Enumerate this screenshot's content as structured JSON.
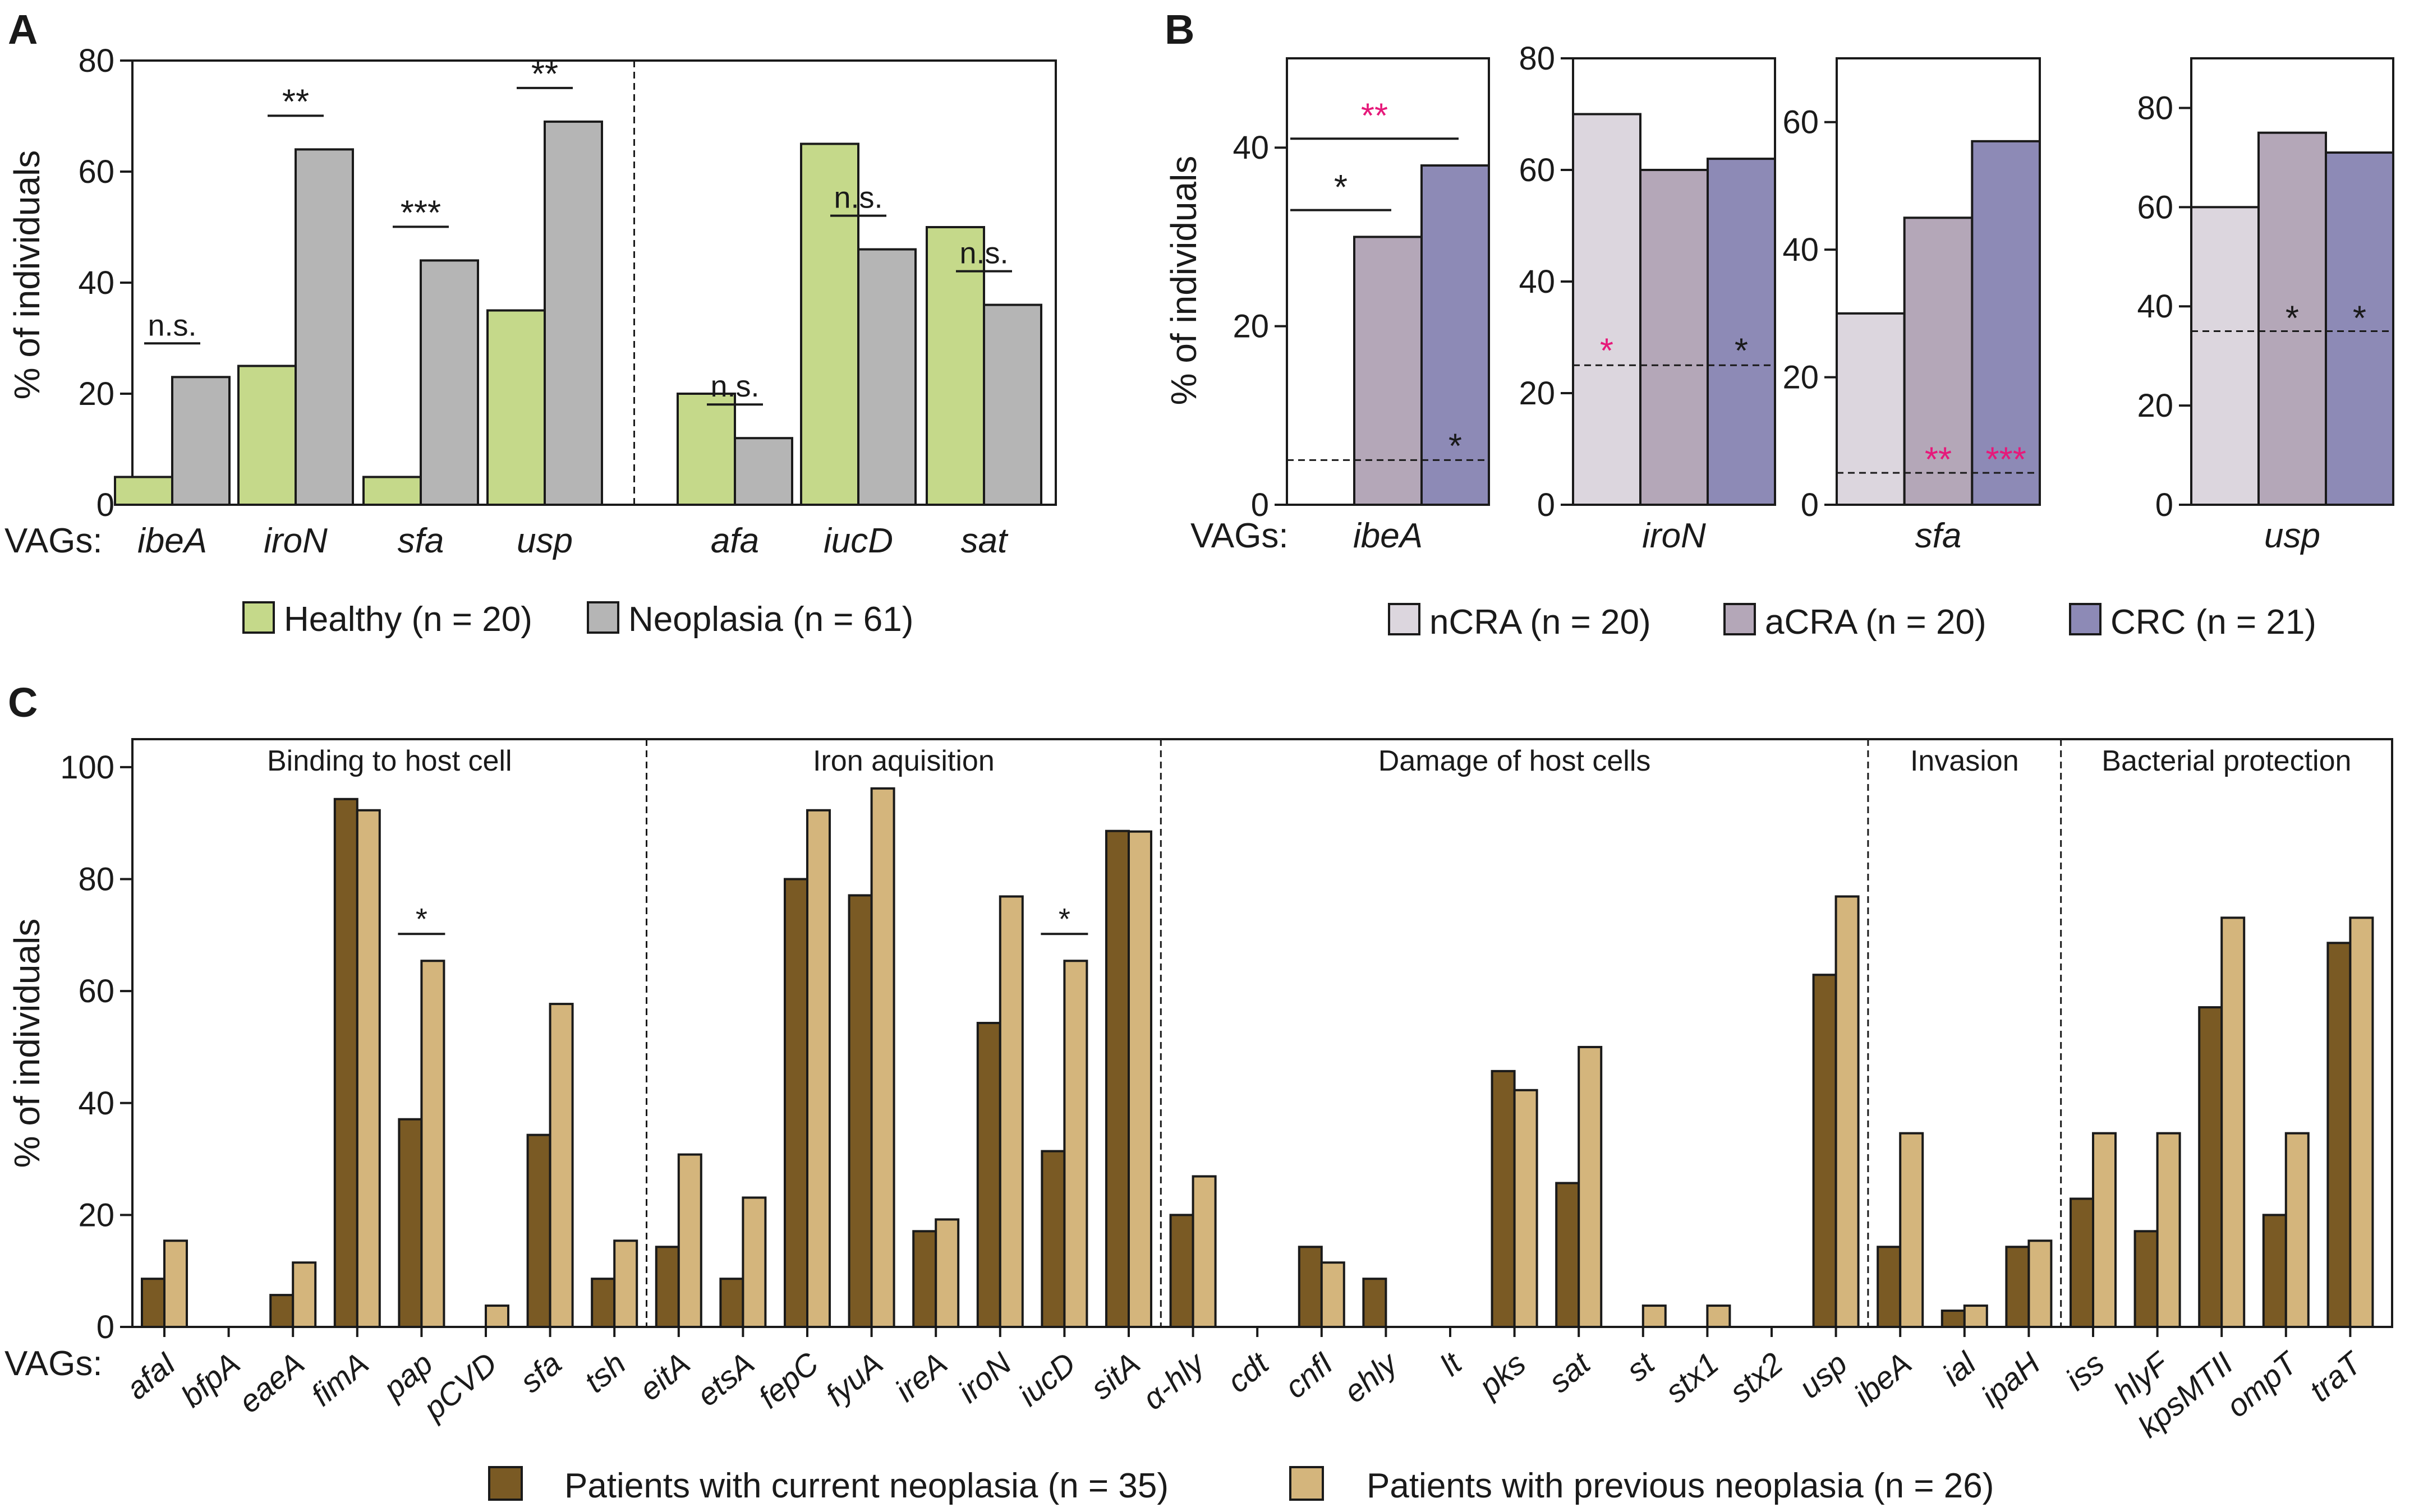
{
  "colors": {
    "healthy": "#c5d98a",
    "neoplasia": "#b5b5b5",
    "nCRA": "#dcd6de",
    "aCRA": "#b4a7b8",
    "CRC": "#8d8ab6",
    "current": "#7a5a24",
    "previous": "#d4b57c",
    "magenta": "#e6197a",
    "black": "#1a1a1a"
  },
  "panel_labels": {
    "a": "A",
    "b": "B",
    "c": "C"
  },
  "common": {
    "vags_prefix": "VAGs:",
    "ylabel": "% of individuals"
  },
  "chart_data": [
    {
      "panel": "A",
      "type": "bar",
      "ylabel": "% of individuals",
      "ylim": [
        0,
        80
      ],
      "yticks": [
        0,
        20,
        40,
        60,
        80
      ],
      "categories": [
        "ibeA",
        "iroN",
        "sfa",
        "usp",
        "afa",
        "iucD",
        "sat"
      ],
      "series": [
        {
          "name": "Healthy (n = 20)",
          "color_key": "healthy",
          "values": [
            5,
            25,
            5,
            35,
            20,
            65,
            50
          ]
        },
        {
          "name": "Neoplasia (n = 61)",
          "color_key": "neoplasia",
          "values": [
            23,
            64,
            44,
            69,
            12,
            46,
            36
          ]
        }
      ],
      "significance": [
        "n.s.",
        "**",
        "***",
        "**",
        "n.s.",
        "n.s.",
        "n.s."
      ],
      "divider_after_index": 3
    },
    {
      "panel": "B",
      "type": "bar",
      "ylabel": "% of individuals",
      "series_names": [
        "nCRA (n = 20)",
        "aCRA (n = 20)",
        "CRC (n = 21)"
      ],
      "series_color_keys": [
        "nCRA",
        "aCRA",
        "CRC"
      ],
      "subplots": [
        {
          "gene": "ibeA",
          "ylim": [
            0,
            50
          ],
          "yticks": [
            0,
            20,
            40
          ],
          "values": [
            0,
            30,
            38
          ],
          "baseline": 5,
          "annotations": [
            {
              "text": "**",
              "color_key": "magenta",
              "x1": 0,
              "x2": 2,
              "y": 41,
              "ty": 43.5
            },
            {
              "text": "*",
              "color_key": "black",
              "x1": 0,
              "x2": 1,
              "y": 33,
              "ty": 35.5
            },
            {
              "text": "*",
              "color_key": "black",
              "x": 2,
              "ty": 6.5
            }
          ]
        },
        {
          "gene": "iroN",
          "ylim": [
            0,
            80
          ],
          "yticks": [
            0,
            20,
            40,
            60,
            80
          ],
          "values": [
            70,
            60,
            62
          ],
          "baseline": 25,
          "annotations": [
            {
              "text": "*",
              "color_key": "magenta",
              "x": 0,
              "ty": 27.5
            },
            {
              "text": "*",
              "color_key": "black",
              "x": 2,
              "ty": 27.5
            }
          ]
        },
        {
          "gene": "sfa",
          "ylim": [
            0,
            70
          ],
          "yticks": [
            0,
            20,
            40,
            60
          ],
          "values": [
            30,
            45,
            57
          ],
          "baseline": 5,
          "annotations": [
            {
              "text": "**",
              "color_key": "magenta",
              "x": 1,
              "ty": 7
            },
            {
              "text": "***",
              "color_key": "magenta",
              "x": 2,
              "ty": 7
            }
          ]
        },
        {
          "gene": "usp",
          "ylim": [
            0,
            90
          ],
          "yticks": [
            0,
            20,
            40,
            60,
            80
          ],
          "values": [
            60,
            75,
            71
          ],
          "baseline": 35,
          "annotations": [
            {
              "text": "*",
              "color_key": "black",
              "x": 1,
              "ty": 37.5
            },
            {
              "text": "*",
              "color_key": "black",
              "x": 2,
              "ty": 37.5
            }
          ]
        }
      ]
    },
    {
      "panel": "C",
      "type": "bar",
      "ylabel": "% of individuals",
      "ylim": [
        0,
        105
      ],
      "yticks": [
        0,
        20,
        40,
        60,
        80,
        100
      ],
      "categories": [
        "afaI",
        "bfpA",
        "eaeA",
        "fimA",
        "pap",
        "pCVD",
        "sfa",
        "tsh",
        "eitA",
        "etsA",
        "fepC",
        "fyuA",
        "ireA",
        "iroN",
        "iucD",
        "sitA",
        "α-hly",
        "cdt",
        "cnfI",
        "ehly",
        "lt",
        "pks",
        "sat",
        "st",
        "stx1",
        "stx2",
        "usp",
        "ibeA",
        "ial",
        "ipaH",
        "iss",
        "hlyF",
        "kpsMTII",
        "ompT",
        "traT"
      ],
      "series": [
        {
          "name": "Patients with current neoplasia (n = 35)",
          "color_key": "current",
          "values": [
            8.6,
            0,
            5.7,
            94.3,
            37.1,
            0,
            34.3,
            8.6,
            14.3,
            8.6,
            80,
            77.1,
            17.1,
            54.3,
            31.4,
            88.6,
            20,
            0,
            14.3,
            8.6,
            0,
            45.7,
            25.7,
            0,
            0,
            0,
            62.9,
            14.3,
            2.9,
            14.3,
            22.9,
            17.1,
            57.1,
            20,
            68.6
          ]
        },
        {
          "name": "Patients with previous neoplasia (n = 26)",
          "color_key": "previous",
          "values": [
            15.4,
            0,
            11.5,
            92.3,
            65.4,
            3.8,
            57.7,
            15.4,
            30.8,
            23.1,
            92.3,
            96.2,
            19.2,
            76.9,
            65.4,
            88.5,
            26.9,
            0,
            11.5,
            0,
            0,
            42.3,
            50,
            3.8,
            3.8,
            0,
            76.9,
            34.6,
            3.8,
            15.4,
            34.6,
            34.6,
            73.1,
            34.6,
            73.1
          ]
        }
      ],
      "groups": [
        {
          "label": "Binding to host cell",
          "start": 0,
          "end": 7
        },
        {
          "label": "Iron aquisition",
          "start": 8,
          "end": 15
        },
        {
          "label": "Damage of host cells",
          "start": 16,
          "end": 26
        },
        {
          "label": "Invasion",
          "start": 27,
          "end": 29
        },
        {
          "label": "Bacterial protection",
          "start": 30,
          "end": 34
        }
      ],
      "significance": [
        {
          "index": 4,
          "text": "*"
        },
        {
          "index": 14,
          "text": "*"
        }
      ]
    }
  ]
}
